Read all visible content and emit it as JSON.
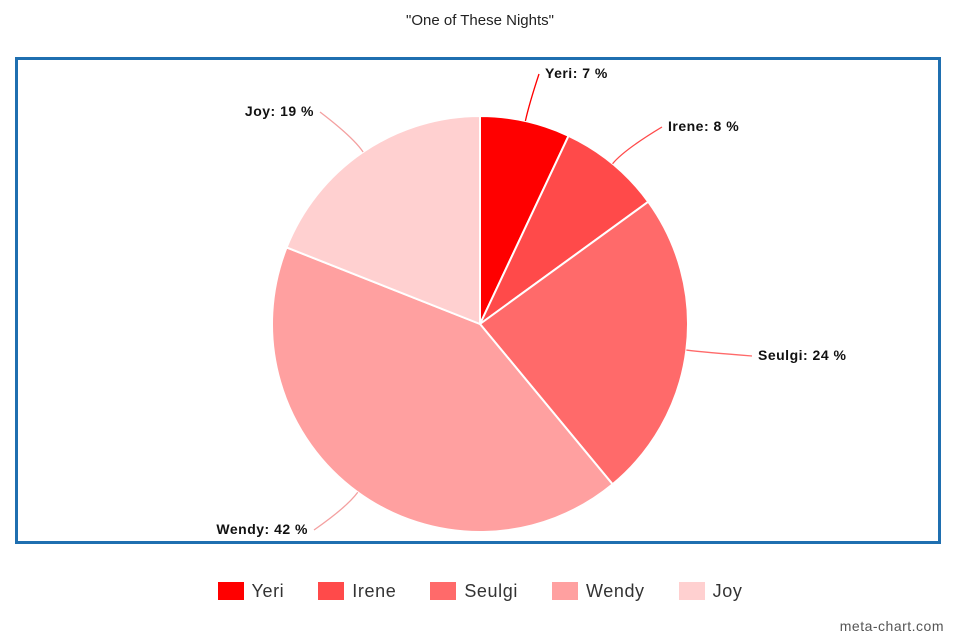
{
  "chart_data": {
    "type": "pie",
    "title": "\"One of These Nights\"",
    "slices": [
      {
        "name": "Yeri",
        "value": 7,
        "label": "Yeri: 7 %",
        "color": "#ff0000"
      },
      {
        "name": "Irene",
        "value": 8,
        "label": "Irene: 8 %",
        "color": "#ff4a4a"
      },
      {
        "name": "Seulgi",
        "value": 24,
        "label": "Seulgi: 24 %",
        "color": "#ff6a6a"
      },
      {
        "name": "Wendy",
        "value": 42,
        "label": "Wendy: 42 %",
        "color": "#ffa0a0"
      },
      {
        "name": "Joy",
        "value": 19,
        "label": "Joy: 19 %",
        "color": "#ffd0d0"
      }
    ],
    "legend_position": "bottom",
    "frame_color": "#1f6fb0"
  },
  "credit": "meta-chart.com"
}
